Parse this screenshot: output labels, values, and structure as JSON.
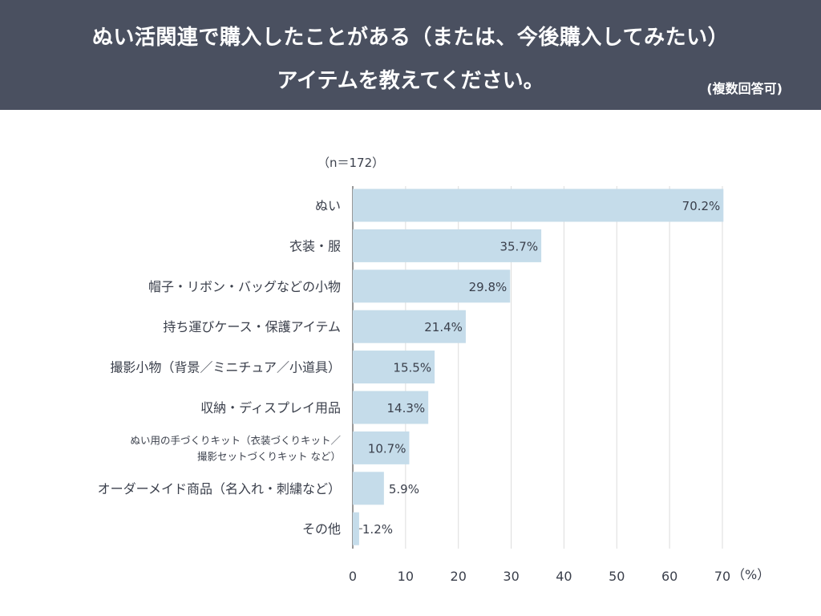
{
  "header": {
    "title_line1": "ぬい活関連で購入したことがある（または、今後購入してみたい）",
    "title_line2": "アイテムを教えてください。",
    "note": "(複数回答可)",
    "background": "#4a5060"
  },
  "chart_data": {
    "type": "bar",
    "orientation": "horizontal",
    "sample_note": "（n＝172）",
    "categories": [
      [
        "ぬい"
      ],
      [
        "衣装・服"
      ],
      [
        "帽子・リボン・バッグなどの小物"
      ],
      [
        "持ち運びケース・保護アイテム"
      ],
      [
        "撮影小物（背景／ミニチュア／小道具）"
      ],
      [
        "収納・ディスプレイ用品"
      ],
      [
        "ぬい用の手づくりキット（衣装づくりキット／",
        "撮影セットづくりキット など）"
      ],
      [
        "オーダーメイド商品（名入れ・刺繍など）"
      ],
      [
        "その他"
      ]
    ],
    "values": [
      70.2,
      35.7,
      29.8,
      21.4,
      15.5,
      14.3,
      10.7,
      5.9,
      1.2
    ],
    "data_labels": [
      "70.2%",
      "35.7%",
      "29.8%",
      "21.4%",
      "15.5%",
      "14.3%",
      "10.7%",
      "5.9%",
      "1.2%"
    ],
    "xlim": [
      0,
      70
    ],
    "xticks": [
      "0",
      "10",
      "20",
      "30",
      "40",
      "50",
      "60",
      "70"
    ],
    "xunit": "（%）",
    "grid": true,
    "bar_color": "#c5dcea"
  }
}
